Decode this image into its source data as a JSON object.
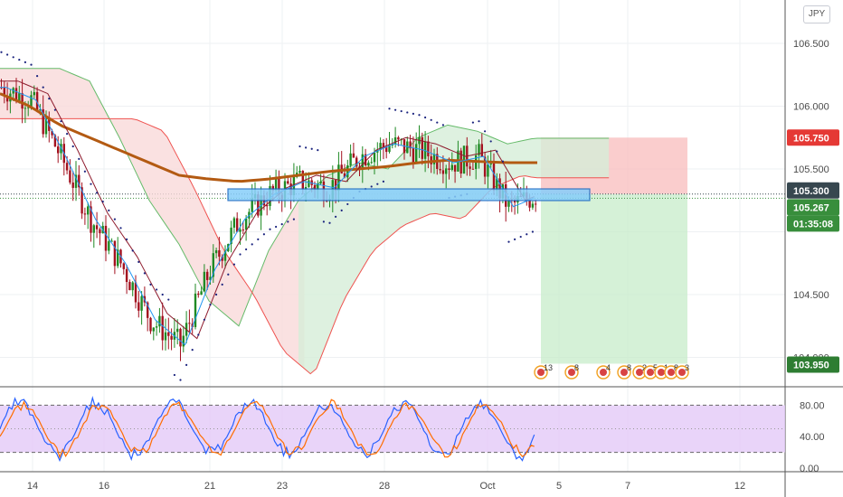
{
  "currency_label": "JPY",
  "colors": {
    "up": "#26a69a",
    "down": "#ef5350",
    "candle_up": "#1f8a24",
    "candle_down": "#a3111f",
    "ma": "#b35a12",
    "zone_fill": "#87cefa",
    "zone_stroke": "#1565c0",
    "cloud_green": "#d6eed8",
    "cloud_red": "#f9d9d9",
    "rsi_band": "#e3c9f7",
    "stoch_k": "#2962ff",
    "stoch_d": "#ff6d00",
    "stop_zone": "#f8bcbc",
    "target_zone": "#c7ecc9",
    "tag_stop": "#e53935",
    "tag_target": "#2e7d32",
    "tag_last": "#37474f",
    "tag_current": "#388e3c"
  },
  "chart_data": {
    "type": "candlestick",
    "symbol_currency": "JPY",
    "price_axis": {
      "range": [
        103.9,
        106.7
      ],
      "ticks": [
        "106.500",
        "106.000",
        "105.500",
        "104.500",
        "104.000"
      ]
    },
    "x_axis": {
      "tick_labels": [
        "14",
        "16",
        "21",
        "23",
        "28",
        "Oct",
        "5",
        "7",
        "12"
      ]
    },
    "price_tags": {
      "stop": "105.750",
      "last": "105.300",
      "current": "105.267",
      "countdown": "01:35:08",
      "target": "103.950"
    },
    "levels": {
      "stop": 105.75,
      "entry": 105.3,
      "current": 105.267,
      "target": 103.95,
      "support_zone": [
        105.27,
        105.32
      ]
    },
    "trend_samples": {
      "x_index": [
        0,
        10,
        20,
        30,
        40,
        50,
        60,
        70,
        80,
        90,
        100,
        110,
        120,
        130,
        140,
        150,
        160,
        170,
        180
      ],
      "close": [
        106.15,
        106.05,
        105.6,
        105.1,
        104.75,
        104.3,
        104.1,
        104.7,
        105.1,
        105.3,
        105.4,
        105.35,
        105.6,
        105.7,
        105.65,
        105.55,
        105.6,
        105.2,
        105.3
      ],
      "moving_average": [
        106.1,
        106.0,
        105.85,
        105.75,
        105.65,
        105.55,
        105.45,
        105.42,
        105.4,
        105.42,
        105.45,
        105.48,
        105.5,
        105.52,
        105.55,
        105.57,
        105.56,
        105.55,
        105.55
      ]
    },
    "oscillator": {
      "type": "stochastic",
      "range": [
        0,
        100
      ],
      "ticks": [
        "80.00",
        "40.00",
        "0.00"
      ],
      "upper_band": 80,
      "lower_band": 20
    },
    "event_markers": [
      "13",
      "8",
      "4",
      "8",
      "2",
      "5",
      "1",
      "8",
      "3"
    ]
  }
}
